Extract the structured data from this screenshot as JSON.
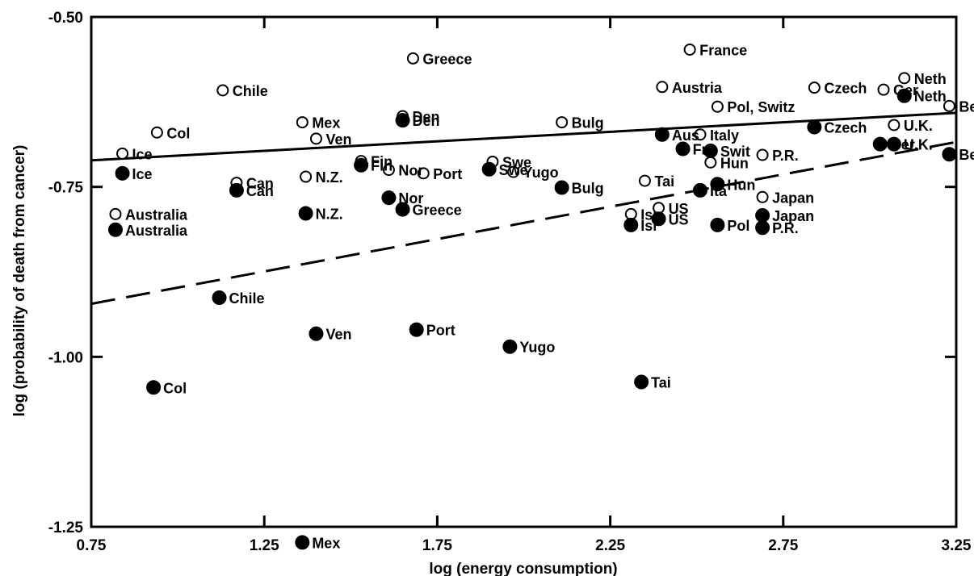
{
  "chart_data": {
    "type": "scatter",
    "xlabel": "log (energy consumption)",
    "ylabel": "log (probability of death from cancer)",
    "xlim": [
      0.75,
      3.25
    ],
    "ylim": [
      -1.25,
      -0.5
    ],
    "x_ticks": [
      {
        "value": 0.75,
        "label": "0.75"
      },
      {
        "value": 1.25,
        "label": "1.25"
      },
      {
        "value": 1.75,
        "label": "1.75"
      },
      {
        "value": 2.25,
        "label": "2.25"
      },
      {
        "value": 2.75,
        "label": "2.75"
      },
      {
        "value": 3.25,
        "label": "3.25"
      }
    ],
    "y_ticks": [
      {
        "value": -0.5,
        "label": "-0.50"
      },
      {
        "value": -0.75,
        "label": "-0.75"
      },
      {
        "value": -1.0,
        "label": "-1.00"
      },
      {
        "value": -1.25,
        "label": "-1.25"
      }
    ],
    "grid": false,
    "series": [
      {
        "marker": "open-circle",
        "points": [
          {
            "label": "Ice",
            "x": 0.84,
            "y": -0.701
          },
          {
            "label": "Col",
            "x": 0.94,
            "y": -0.67
          },
          {
            "label": "Australia",
            "x": 0.82,
            "y": -0.79
          },
          {
            "label": "Chile",
            "x": 1.13,
            "y": -0.608
          },
          {
            "label": "Can",
            "x": 1.17,
            "y": -0.744
          },
          {
            "label": "N.Z.",
            "x": 1.37,
            "y": -0.735
          },
          {
            "label": "Mex",
            "x": 1.36,
            "y": -0.655
          },
          {
            "label": "Ven",
            "x": 1.4,
            "y": -0.679
          },
          {
            "label": "Fin",
            "x": 1.53,
            "y": -0.712
          },
          {
            "label": "Den",
            "x": 1.65,
            "y": -0.646
          },
          {
            "label": "Greece",
            "x": 1.68,
            "y": -0.561
          },
          {
            "label": "Nor",
            "x": 1.61,
            "y": -0.725
          },
          {
            "label": "Port",
            "x": 1.71,
            "y": -0.73
          },
          {
            "label": "Swe",
            "x": 1.91,
            "y": -0.713
          },
          {
            "label": "Yugo",
            "x": 1.97,
            "y": -0.728
          },
          {
            "label": "Bulg",
            "x": 2.11,
            "y": -0.655
          },
          {
            "label": "Tai",
            "x": 2.35,
            "y": -0.741
          },
          {
            "label": "Austria",
            "x": 2.4,
            "y": -0.603
          },
          {
            "label": "France",
            "x": 2.48,
            "y": -0.548
          },
          {
            "label": "Isr",
            "x": 2.31,
            "y": -0.79
          },
          {
            "label": "US",
            "x": 2.39,
            "y": -0.781
          },
          {
            "label": "Italy",
            "x": 2.51,
            "y": -0.673
          },
          {
            "label": "Hun",
            "x": 2.54,
            "y": -0.714
          },
          {
            "label": "Pol, Switz",
            "x": 2.56,
            "y": -0.632
          },
          {
            "label": "P.R.",
            "x": 2.69,
            "y": -0.703
          },
          {
            "label": "Japan",
            "x": 2.69,
            "y": -0.765
          },
          {
            "label": "Czech",
            "x": 2.84,
            "y": -0.604
          },
          {
            "label": "Ger",
            "x": 3.04,
            "y": -0.607
          },
          {
            "label": "Neth",
            "x": 3.1,
            "y": -0.59
          },
          {
            "label": "Bel",
            "x": 3.23,
            "y": -0.631
          },
          {
            "label": "U.K.",
            "x": 3.07,
            "y": -0.659
          }
        ]
      },
      {
        "marker": "filled-circle",
        "points": [
          {
            "label": "Ice",
            "x": 0.84,
            "y": -0.73
          },
          {
            "label": "Australia",
            "x": 0.82,
            "y": -0.813
          },
          {
            "label": "Col",
            "x": 0.93,
            "y": -1.045
          },
          {
            "label": "Chile",
            "x": 1.12,
            "y": -0.913
          },
          {
            "label": "Can",
            "x": 1.17,
            "y": -0.755
          },
          {
            "label": "N.Z.",
            "x": 1.37,
            "y": -0.789
          },
          {
            "label": "Mex",
            "x": 1.36,
            "y": -1.273
          },
          {
            "label": "Ven",
            "x": 1.4,
            "y": -0.966
          },
          {
            "label": "Fin",
            "x": 1.53,
            "y": -0.718
          },
          {
            "label": "Den",
            "x": 1.65,
            "y": -0.652
          },
          {
            "label": "Nor",
            "x": 1.61,
            "y": -0.766
          },
          {
            "label": "Greece",
            "x": 1.65,
            "y": -0.783
          },
          {
            "label": "Port",
            "x": 1.69,
            "y": -0.96
          },
          {
            "label": "Swe",
            "x": 1.9,
            "y": -0.724
          },
          {
            "label": "Yugo",
            "x": 1.96,
            "y": -0.985
          },
          {
            "label": "Bulg",
            "x": 2.11,
            "y": -0.751
          },
          {
            "label": "Aus",
            "x": 2.4,
            "y": -0.673
          },
          {
            "label": "Fra",
            "x": 2.46,
            "y": -0.694
          },
          {
            "label": "Isr",
            "x": 2.31,
            "y": -0.806
          },
          {
            "label": "US",
            "x": 2.39,
            "y": -0.797
          },
          {
            "label": "Tai",
            "x": 2.34,
            "y": -1.037
          },
          {
            "label": "Swit",
            "x": 2.54,
            "y": -0.697
          },
          {
            "label": "Ita",
            "x": 2.51,
            "y": -0.755
          },
          {
            "label": "Hun",
            "x": 2.56,
            "y": -0.746
          },
          {
            "label": "Pol",
            "x": 2.56,
            "y": -0.806
          },
          {
            "label": "Japan",
            "x": 2.69,
            "y": -0.792
          },
          {
            "label": "P.R.",
            "x": 2.69,
            "y": -0.81
          },
          {
            "label": "Czech",
            "x": 2.84,
            "y": -0.662
          },
          {
            "label": "Ger",
            "x": 3.03,
            "y": -0.687
          },
          {
            "label": "U.K.",
            "x": 3.07,
            "y": -0.687
          },
          {
            "label": "Neth",
            "x": 3.1,
            "y": -0.616
          },
          {
            "label": "Bel",
            "x": 3.23,
            "y": -0.702
          }
        ]
      }
    ],
    "fit_lines": [
      {
        "style": "solid",
        "x": [
          0.75,
          3.25
        ],
        "y": [
          -0.711,
          -0.641
        ]
      },
      {
        "style": "dashed",
        "x": [
          0.75,
          3.25
        ],
        "y": [
          -0.922,
          -0.684
        ]
      }
    ]
  }
}
